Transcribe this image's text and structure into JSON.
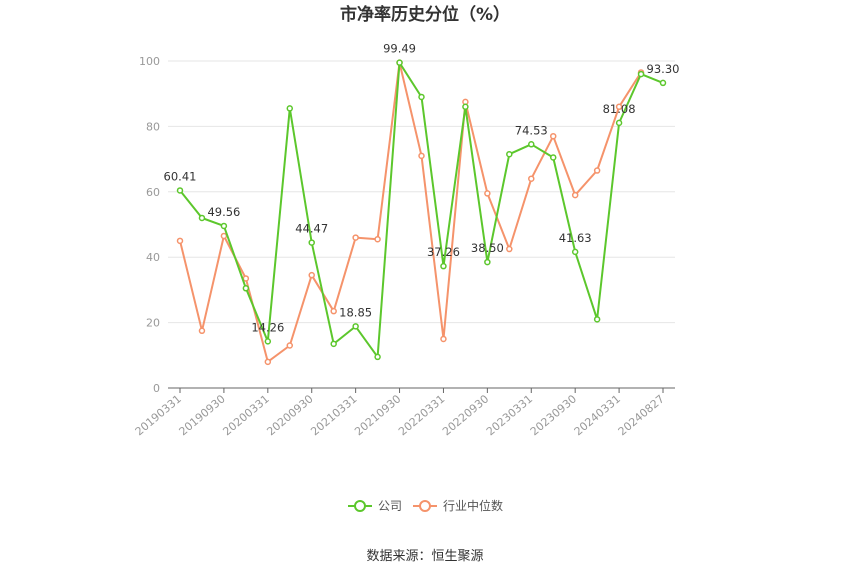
{
  "chart_data": {
    "type": "line",
    "title": "市净率历史分位（%）",
    "ylim": [
      0,
      100
    ],
    "yticks": [
      0,
      20,
      40,
      60,
      80,
      100
    ],
    "x": [
      "20190331",
      "20190630",
      "20190930",
      "20191231",
      "20200331",
      "20200630",
      "20200930",
      "20201231",
      "20210331",
      "20210630",
      "20210930",
      "20211231",
      "20220331",
      "20220630",
      "20220930",
      "20221231",
      "20230331",
      "20230630",
      "20230930",
      "20231231",
      "20240331",
      "20240630",
      "20240827"
    ],
    "xticks": [
      "20190331",
      "20190930",
      "20200331",
      "20200930",
      "20210331",
      "20210930",
      "20220331",
      "20220930",
      "20230331",
      "20230930",
      "20240331",
      "20240827"
    ],
    "series": [
      {
        "name": "公司",
        "color": "#5cc72c",
        "values": [
          60.41,
          52,
          49.56,
          30.5,
          14.26,
          85.5,
          44.47,
          13.5,
          18.85,
          9.5,
          99.49,
          89,
          37.26,
          86,
          38.5,
          71.5,
          74.53,
          70.5,
          41.63,
          21,
          81.08,
          96,
          93.3
        ],
        "labels": {
          "0": "60.41",
          "2": "49.56",
          "4": "14.26",
          "6": "44.47",
          "8": "18.85",
          "10": "99.49",
          "12": "37.26",
          "14": "38.50",
          "16": "74.53",
          "18": "41.63",
          "20": "81.08",
          "22": "93.30"
        }
      },
      {
        "name": "行业中位数",
        "color": "#f5936b",
        "values": [
          45,
          17.5,
          46.5,
          33.5,
          8,
          13,
          34.5,
          23.5,
          46,
          45.5,
          99.5,
          71,
          15,
          87.5,
          59.5,
          42.5,
          64,
          77,
          59,
          66.5,
          86,
          96.5,
          null
        ]
      }
    ],
    "legend": "bottom-center"
  },
  "source": "数据来源：恒生聚源"
}
